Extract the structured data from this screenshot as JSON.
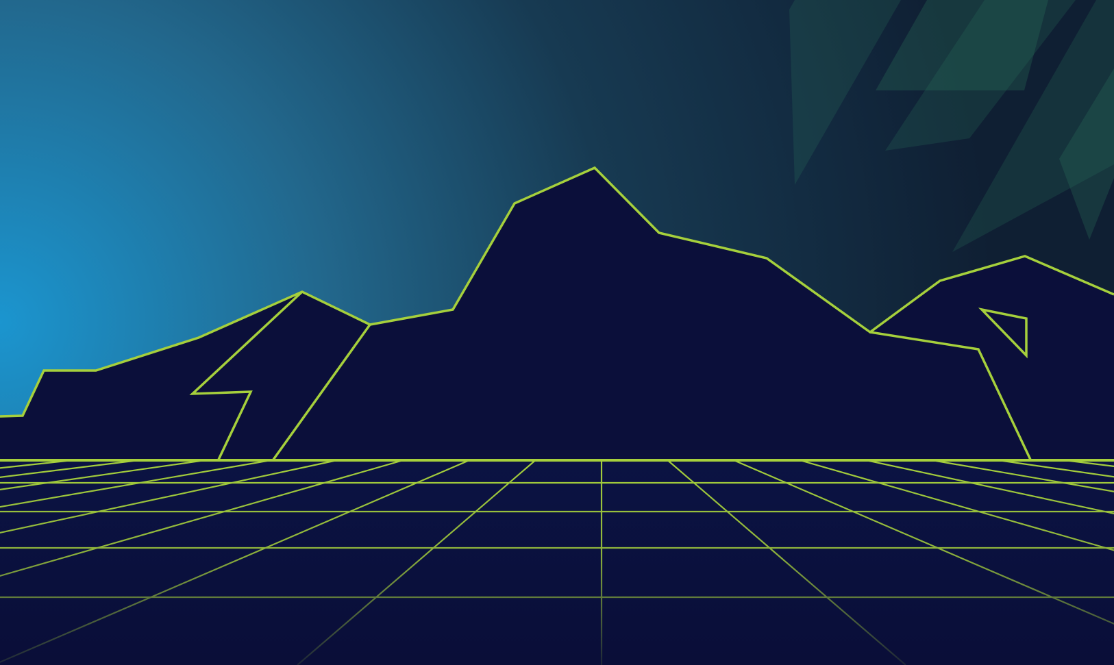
{
  "scene": {
    "kind": "synthwave-landscape",
    "elements": [
      "sky-gradient",
      "mountain-range",
      "perspective-grid",
      "translucent-shards"
    ]
  },
  "colors": {
    "sky_glow": "#1b95cf",
    "sky_mid": "#1d4f6c",
    "sky_dark": "#0f1f33",
    "mountain_fill": "#0b0f3a",
    "neon_line": "#a6d03c",
    "ground_top": "#0b1343",
    "ground_bottom": "#0a0e38",
    "shard": "#2f7a5f"
  }
}
